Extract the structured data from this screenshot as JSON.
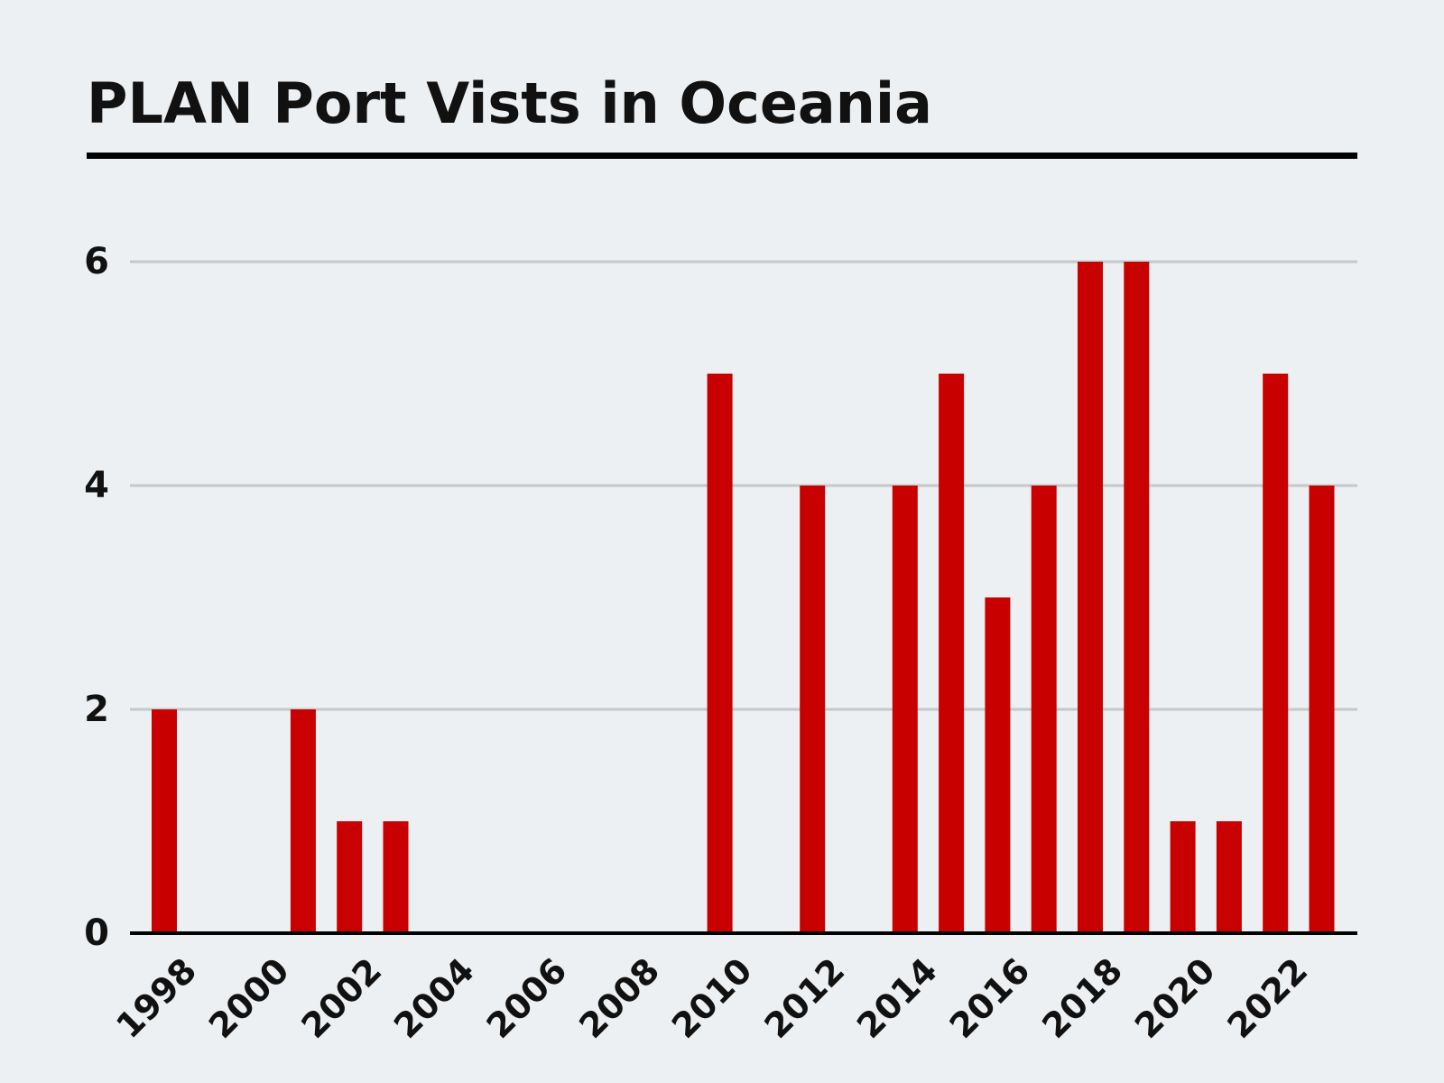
{
  "chart_data": {
    "type": "bar",
    "title": "PLAN Port Vists in Oceania",
    "xlabel": "",
    "ylabel": "",
    "categories": [
      "1998",
      "1999",
      "2000",
      "2001",
      "2002",
      "2003",
      "2004",
      "2005",
      "2006",
      "2007",
      "2008",
      "2009",
      "2010",
      "2011",
      "2012",
      "2013",
      "2014",
      "2015",
      "2016",
      "2017",
      "2018",
      "2019",
      "2020",
      "2021",
      "2022",
      "2023"
    ],
    "values": [
      2,
      0,
      0,
      2,
      1,
      1,
      0,
      0,
      0,
      0,
      0,
      0,
      5,
      0,
      4,
      0,
      4,
      5,
      3,
      4,
      6,
      6,
      1,
      1,
      5,
      4
    ],
    "x_tick_labels": [
      "1998",
      "2000",
      "2002",
      "2004",
      "2006",
      "2008",
      "2010",
      "2012",
      "2014",
      "2016",
      "2018",
      "2020",
      "2022"
    ],
    "y_ticks": [
      "0",
      "2",
      "4",
      "6"
    ],
    "ylim": [
      0,
      6
    ],
    "grid": "horizontal",
    "legend": "none",
    "colors": {
      "bar": "#c80000",
      "grid": "#c4c7cb",
      "axis": "#000000",
      "background": "#edf0f2"
    }
  }
}
